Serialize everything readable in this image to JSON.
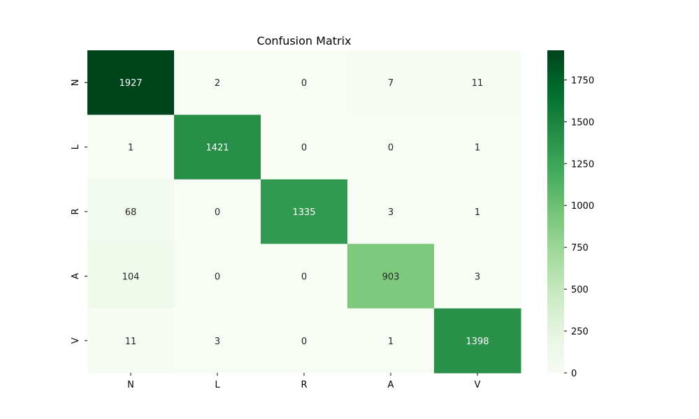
{
  "chart_data": {
    "type": "heatmap",
    "title": "Confusion Matrix",
    "xlabel": "",
    "ylabel": "",
    "x_categories": [
      "N",
      "L",
      "R",
      "A",
      "V"
    ],
    "y_categories": [
      "N",
      "L",
      "R",
      "A",
      "V"
    ],
    "values": [
      [
        1927,
        2,
        0,
        7,
        11
      ],
      [
        1,
        1421,
        0,
        0,
        1
      ],
      [
        68,
        0,
        1335,
        3,
        1
      ],
      [
        104,
        0,
        0,
        903,
        3
      ],
      [
        11,
        3,
        0,
        1,
        1398
      ]
    ],
    "colorbar": {
      "min": 0,
      "max": 1927,
      "ticks": [
        0,
        250,
        500,
        750,
        1000,
        1250,
        1500,
        1750
      ]
    },
    "colormap": "Greens",
    "colors": {
      "low": "#f7fcf5",
      "high": "#00441b",
      "text_light": "#ffffff",
      "text_dark": "#262626"
    },
    "grid": false
  }
}
